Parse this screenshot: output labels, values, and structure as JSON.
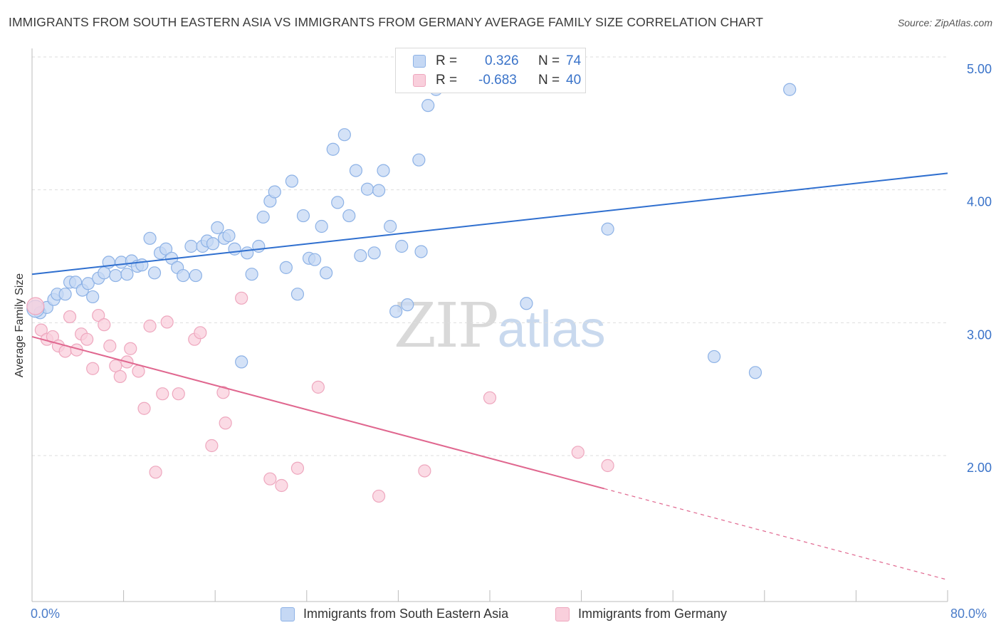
{
  "title": "IMMIGRANTS FROM SOUTH EASTERN ASIA VS IMMIGRANTS FROM GERMANY AVERAGE FAMILY SIZE CORRELATION CHART",
  "source": "Source: ZipAtlas.com",
  "watermark": {
    "zip": "ZIP",
    "atlas": "atlas"
  },
  "legend": [
    {
      "r_label": "R =",
      "r_value": "0.326",
      "n_label": "N =",
      "n_value": "74"
    },
    {
      "r_label": "R =",
      "r_value": "-0.683",
      "n_label": "N =",
      "n_value": "40"
    }
  ],
  "bottom_legend": [
    {
      "label": "Immigrants from South Eastern Asia"
    },
    {
      "label": "Immigrants from Germany"
    }
  ],
  "x_axis": {
    "min_label": "0.0%",
    "max_label": "80.0%"
  },
  "colors": {
    "blue_fill": "#c5d8f4",
    "blue_stroke": "#8db2e6",
    "blue_line": "#2f6fcf",
    "blue_text": "#3a73c9",
    "pink_fill": "#f9cfdc",
    "pink_stroke": "#eea7be",
    "pink_line": "#e0678f",
    "grid": "#dedede",
    "axis": "#bbbbbb"
  },
  "chart_data": {
    "type": "scatter",
    "title": "IMMIGRANTS FROM SOUTH EASTERN ASIA VS IMMIGRANTS FROM GERMANY AVERAGE FAMILY SIZE CORRELATION CHART",
    "xlabel": "",
    "ylabel": "Average Family Size",
    "xlim": [
      0,
      80
    ],
    "ylim": [
      1.0,
      5.2
    ],
    "x_tick_labels": [
      "0.0%",
      "80.0%"
    ],
    "y_ticks": [
      2.0,
      3.0,
      4.0,
      5.0
    ],
    "y_tick_labels": [
      "2.00",
      "3.00",
      "4.00",
      "5.00"
    ],
    "grid": true,
    "series": [
      {
        "name": "Immigrants from South Eastern Asia",
        "color": "#8db2e6",
        "points": [
          [
            0.7,
            3.15
          ],
          [
            1.3,
            3.19
          ],
          [
            1.9,
            3.25
          ],
          [
            2.2,
            3.29
          ],
          [
            2.9,
            3.29
          ],
          [
            3.3,
            3.38
          ],
          [
            3.8,
            3.38
          ],
          [
            4.4,
            3.32
          ],
          [
            4.9,
            3.37
          ],
          [
            5.3,
            3.27
          ],
          [
            5.8,
            3.41
          ],
          [
            6.3,
            3.45
          ],
          [
            6.7,
            3.53
          ],
          [
            7.3,
            3.43
          ],
          [
            7.8,
            3.53
          ],
          [
            8.3,
            3.44
          ],
          [
            8.7,
            3.54
          ],
          [
            9.2,
            3.5
          ],
          [
            9.6,
            3.51
          ],
          [
            10.3,
            3.71
          ],
          [
            10.7,
            3.45
          ],
          [
            11.2,
            3.6
          ],
          [
            11.7,
            3.63
          ],
          [
            12.2,
            3.56
          ],
          [
            12.7,
            3.49
          ],
          [
            13.2,
            3.43
          ],
          [
            13.9,
            3.65
          ],
          [
            14.3,
            3.43
          ],
          [
            14.9,
            3.65
          ],
          [
            15.3,
            3.69
          ],
          [
            15.8,
            3.67
          ],
          [
            16.2,
            3.79
          ],
          [
            16.8,
            3.71
          ],
          [
            17.2,
            3.73
          ],
          [
            17.7,
            3.63
          ],
          [
            18.3,
            2.78
          ],
          [
            18.8,
            3.6
          ],
          [
            19.2,
            3.44
          ],
          [
            19.8,
            3.65
          ],
          [
            20.2,
            3.87
          ],
          [
            20.8,
            3.99
          ],
          [
            21.2,
            4.06
          ],
          [
            22.2,
            3.49
          ],
          [
            22.7,
            4.14
          ],
          [
            23.2,
            3.29
          ],
          [
            23.7,
            3.88
          ],
          [
            24.2,
            3.56
          ],
          [
            24.7,
            3.55
          ],
          [
            25.3,
            3.8
          ],
          [
            25.7,
            3.45
          ],
          [
            26.3,
            4.38
          ],
          [
            26.7,
            3.98
          ],
          [
            27.3,
            4.49
          ],
          [
            27.7,
            3.88
          ],
          [
            28.3,
            4.22
          ],
          [
            28.7,
            3.58
          ],
          [
            29.3,
            4.08
          ],
          [
            29.9,
            3.6
          ],
          [
            30.3,
            4.07
          ],
          [
            30.7,
            4.22
          ],
          [
            31.3,
            3.8
          ],
          [
            31.8,
            3.16
          ],
          [
            32.3,
            3.65
          ],
          [
            32.8,
            3.21
          ],
          [
            33.8,
            4.3
          ],
          [
            34.0,
            3.61
          ],
          [
            34.6,
            4.71
          ],
          [
            35.3,
            4.83
          ],
          [
            43.2,
            3.22
          ],
          [
            50.3,
            3.78
          ],
          [
            59.6,
            2.82
          ],
          [
            63.2,
            2.7
          ],
          [
            66.2,
            4.83
          ],
          [
            0.3,
            3.18
          ]
        ],
        "trend": {
          "x": [
            0,
            80
          ],
          "y": [
            3.44,
            4.2
          ]
        }
      },
      {
        "name": "Immigrants from Germany",
        "color": "#eea7be",
        "points": [
          [
            0.3,
            3.2
          ],
          [
            0.8,
            3.02
          ],
          [
            1.3,
            2.95
          ],
          [
            1.8,
            2.97
          ],
          [
            2.3,
            2.9
          ],
          [
            2.9,
            2.86
          ],
          [
            3.3,
            3.12
          ],
          [
            3.9,
            2.87
          ],
          [
            4.3,
            2.99
          ],
          [
            4.8,
            2.95
          ],
          [
            5.3,
            2.73
          ],
          [
            5.8,
            3.13
          ],
          [
            6.3,
            3.06
          ],
          [
            6.8,
            2.9
          ],
          [
            7.3,
            2.75
          ],
          [
            7.7,
            2.67
          ],
          [
            8.3,
            2.78
          ],
          [
            8.6,
            2.88
          ],
          [
            9.3,
            2.71
          ],
          [
            9.8,
            2.43
          ],
          [
            10.3,
            3.05
          ],
          [
            10.8,
            1.95
          ],
          [
            11.4,
            2.54
          ],
          [
            11.8,
            3.08
          ],
          [
            12.8,
            2.54
          ],
          [
            14.2,
            2.95
          ],
          [
            14.7,
            3.0
          ],
          [
            15.7,
            2.15
          ],
          [
            16.7,
            2.55
          ],
          [
            16.9,
            2.32
          ],
          [
            18.3,
            3.26
          ],
          [
            20.8,
            1.9
          ],
          [
            21.8,
            1.85
          ],
          [
            23.2,
            1.98
          ],
          [
            25.0,
            2.59
          ],
          [
            30.3,
            1.77
          ],
          [
            34.3,
            1.96
          ],
          [
            40.0,
            2.51
          ],
          [
            47.7,
            2.1
          ],
          [
            50.3,
            2.0
          ]
        ],
        "trend": {
          "x": [
            0,
            80
          ],
          "y": [
            2.97,
            1.14
          ],
          "solid_until_x": 50
        }
      }
    ]
  }
}
